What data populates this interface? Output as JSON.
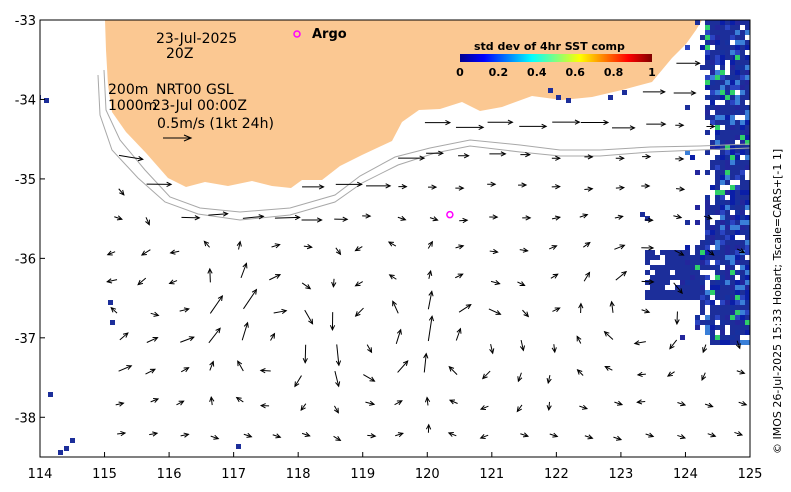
{
  "chart_data": {
    "type": "vector-field-map",
    "xlim": [
      114,
      125
    ],
    "ylim": [
      -38.5,
      -33
    ],
    "x_ticks": [
      "114",
      "115",
      "116",
      "117",
      "118",
      "119",
      "120",
      "121",
      "122",
      "123",
      "124",
      "125"
    ],
    "y_ticks": [
      "-33",
      "-34",
      "-35",
      "-36",
      "-37",
      "-38"
    ],
    "annotations": {
      "date": "23-Jul-2025",
      "hour": "20Z",
      "depth_shallow": "200m",
      "depth_deep": "1000m",
      "product": "NRT00 GSL",
      "product_time": "23-Jul 00:00Z",
      "scale": "0.5m/s (1kt 24h)"
    },
    "legend": {
      "marker_label": "Argo",
      "marker_color": "#ff00ff"
    },
    "colorbar": {
      "title": "std dev of 4hr SST comp",
      "range": [
        0,
        1
      ],
      "ticks": [
        "0",
        "0.2",
        "0.4",
        "0.6",
        "0.8",
        "1"
      ],
      "colors": [
        "#00008f",
        "#0000ff",
        "#0080ff",
        "#00ffff",
        "#80ff80",
        "#ffff00",
        "#ff8000",
        "#ff0000",
        "#800000"
      ]
    },
    "colors": {
      "land": "#fbc892",
      "arrow": "#000000",
      "contour": "#a8a8a8",
      "sst_dominant": "#1c2e9a"
    },
    "argo_floats": [
      {
        "lon": 120.35,
        "lat": -35.45
      }
    ],
    "vortices": [
      {
        "lon": 114.8,
        "lat": -36.9,
        "sense": "cw"
      },
      {
        "lon": 116.3,
        "lat": -36.45,
        "sense": "cw"
      },
      {
        "lon": 117.6,
        "lat": -37.0,
        "sense": "ccw"
      },
      {
        "lon": 119.3,
        "lat": -37.0,
        "sense": "cw"
      },
      {
        "lon": 120.6,
        "lat": -37.1,
        "sense": "ccw"
      },
      {
        "lon": 123.3,
        "lat": -36.6,
        "sense": "ccw"
      }
    ],
    "side_label": "© IMOS 26-Jul-2025 15:33 Hobart; Tscale=CARS+[-1 1]"
  }
}
